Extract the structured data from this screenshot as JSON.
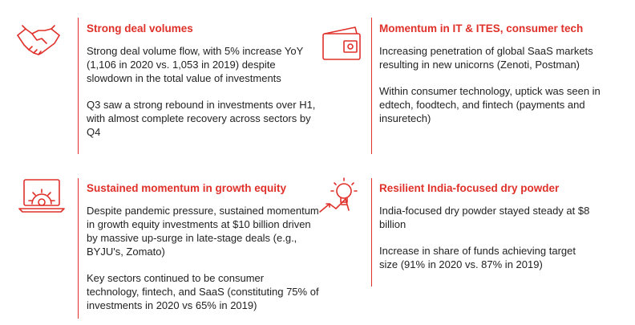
{
  "colors": {
    "accent": "#e0302a",
    "text": "#222222"
  },
  "sections": [
    {
      "icon": "handshake-icon",
      "title": "Strong deal volumes",
      "paragraphs": [
        "Strong deal volume flow, with 5% increase YoY (1,106 in 2020 vs. 1,053 in 2019) despite slowdown in the total value of investments",
        "Q3 saw a strong rebound in investments over H1, with almost complete recovery across sectors by Q4"
      ]
    },
    {
      "icon": "wallet-icon",
      "title": "Momentum in IT & ITES, consumer tech",
      "paragraphs": [
        "Increasing penetration of global SaaS markets resulting in new unicorns (Zenoti, Postman)",
        "Within consumer technology, uptick was seen in edtech, foodtech, and fintech (payments and insuretech)"
      ]
    },
    {
      "icon": "laptop-gear-icon",
      "title": "Sustained momentum in growth equity",
      "paragraphs": [
        "Despite pandemic pressure, sustained momentum in growth equity investments at $10 billion driven by massive up-surge in late-stage deals (e.g., BYJU's, Zomato)",
        "Key sectors continued to be consumer technology, fintech, and SaaS (constituting 75% of investments in 2020 vs 65% in 2019)"
      ]
    },
    {
      "icon": "lightbulb-growth-icon",
      "title": "Resilient India-focused dry powder",
      "paragraphs": [
        "India-focused dry powder stayed steady at $8 billion",
        "Increase in share of funds achieving target size (91% in 2020 vs. 87% in 2019)"
      ]
    }
  ]
}
